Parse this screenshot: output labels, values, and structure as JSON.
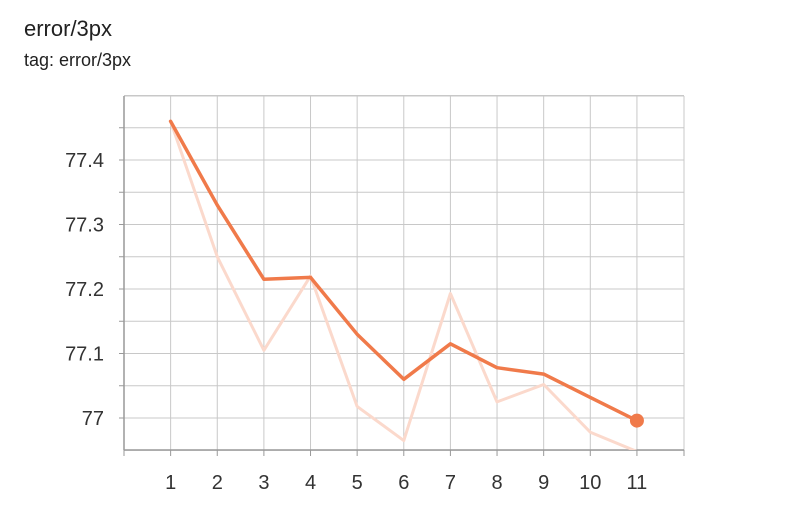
{
  "header": {
    "title": "error/3px",
    "subtitle": "tag: error/3px"
  },
  "colors": {
    "smoothed": "#f07a4a",
    "raw": "#fbd9cc",
    "grid": "#c8c8c8",
    "axis": "#999999"
  },
  "chart_data": {
    "type": "line",
    "title": "error/3px",
    "subtitle": "tag: error/3px",
    "x": [
      1,
      2,
      3,
      4,
      5,
      6,
      7,
      8,
      9,
      10,
      11
    ],
    "x_ticks": [
      "1",
      "2",
      "3",
      "4",
      "5",
      "6",
      "7",
      "8",
      "9",
      "10",
      "11"
    ],
    "y_ticks": [
      "77",
      "77.1",
      "77.2",
      "77.3",
      "77.4"
    ],
    "xlim": [
      0,
      12
    ],
    "ylim": [
      76.95,
      77.5
    ],
    "grid": true,
    "series": [
      {
        "role": "smoothed",
        "values": [
          77.46,
          77.33,
          77.215,
          77.218,
          77.13,
          77.06,
          77.115,
          77.078,
          77.068,
          77.032,
          76.996
        ]
      },
      {
        "role": "raw",
        "values": [
          77.46,
          77.25,
          77.105,
          77.22,
          77.018,
          76.965,
          77.193,
          77.025,
          77.052,
          76.978,
          76.948
        ]
      }
    ],
    "last_point_marker": true
  }
}
